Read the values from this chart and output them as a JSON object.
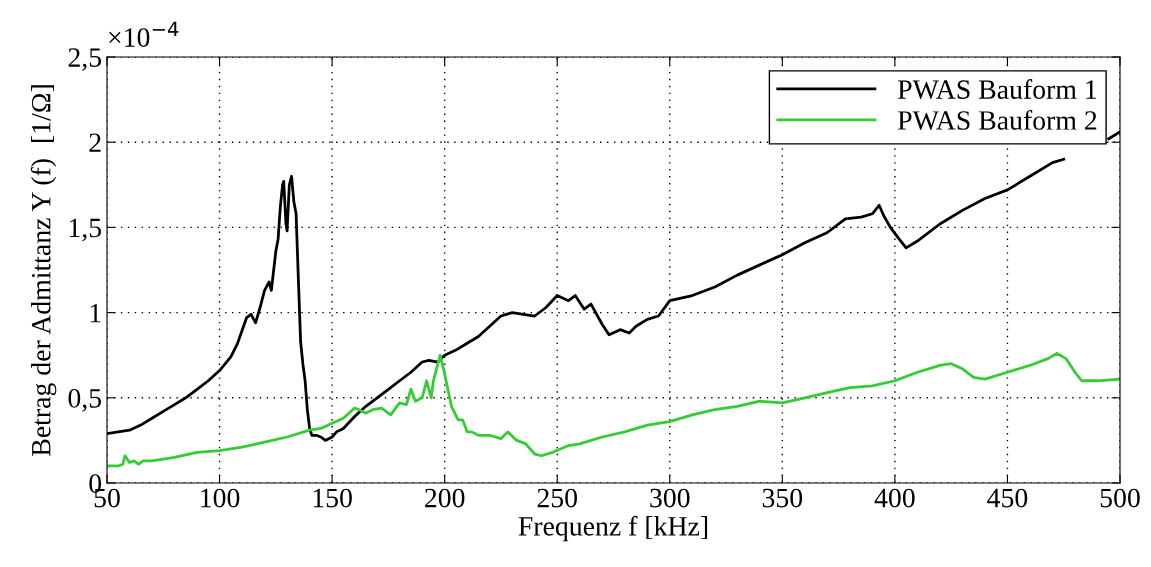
{
  "chart_data": {
    "type": "line",
    "xlabel": "Frequenz f [kHz]",
    "ylabel": "Betrag der Admittanz Y (f)  [1/Ω]",
    "annotations": [
      "×10$^{−4}$"
    ],
    "xlim": [
      50,
      500
    ],
    "xticks": [
      50,
      100,
      150,
      200,
      250,
      300,
      350,
      400,
      450,
      500
    ],
    "ylim": [
      0,
      2.5
    ],
    "yticks": [
      0,
      {
        "value": 0.5,
        "label": "0,5"
      },
      1,
      {
        "value": 1.5,
        "label": "1,5"
      },
      2,
      {
        "value": 2.5,
        "label": "2,5"
      }
    ],
    "grid": true,
    "legend": "top right",
    "line_style": "solid",
    "marker": "none",
    "series": [
      {
        "name": "PWAS Bauform 1",
        "color": "#000000",
        "x": [
          50,
          55,
          60,
          65,
          70,
          75,
          80,
          85,
          90,
          95,
          100,
          105,
          108,
          112,
          114,
          116,
          118,
          120,
          122,
          123,
          125,
          126,
          127,
          128,
          128.5,
          129.5,
          130,
          131,
          132,
          133,
          134,
          135,
          136,
          137,
          138,
          139,
          140,
          141,
          143,
          145,
          147,
          150,
          152,
          155,
          160,
          165,
          170,
          175,
          180,
          185,
          190,
          193,
          197,
          200,
          205,
          210,
          215,
          220,
          225,
          230,
          235,
          240,
          245,
          250,
          255,
          258,
          262,
          265,
          270,
          273,
          278,
          282,
          285,
          290,
          295,
          300,
          310,
          320,
          330,
          340,
          350,
          360,
          370,
          378,
          385,
          390,
          393,
          395,
          398,
          402,
          405,
          410,
          420,
          430,
          440,
          450,
          460,
          470,
          475,
          483,
          495,
          500
        ],
        "values": [
          0.29,
          0.3,
          0.31,
          0.34,
          0.38,
          0.42,
          0.46,
          0.5,
          0.55,
          0.6,
          0.66,
          0.74,
          0.82,
          0.97,
          0.99,
          0.94,
          1.03,
          1.13,
          1.18,
          1.13,
          1.36,
          1.43,
          1.62,
          1.75,
          1.77,
          1.52,
          1.48,
          1.75,
          1.8,
          1.65,
          1.58,
          1.2,
          0.83,
          0.7,
          0.6,
          0.43,
          0.32,
          0.28,
          0.28,
          0.27,
          0.25,
          0.27,
          0.3,
          0.32,
          0.39,
          0.45,
          0.5,
          0.55,
          0.6,
          0.65,
          0.71,
          0.72,
          0.71,
          0.75,
          0.78,
          0.82,
          0.86,
          0.92,
          0.98,
          1.0,
          0.99,
          0.98,
          1.03,
          1.1,
          1.07,
          1.1,
          1.02,
          1.05,
          0.93,
          0.87,
          0.9,
          0.88,
          0.92,
          0.96,
          0.98,
          1.07,
          1.1,
          1.15,
          1.22,
          1.28,
          1.34,
          1.41,
          1.47,
          1.55,
          1.56,
          1.58,
          1.63,
          1.57,
          1.5,
          1.43,
          1.38,
          1.42,
          1.52,
          1.6,
          1.67,
          1.72,
          1.8,
          1.88,
          1.9,
          null,
          2.02,
          2.06
        ]
      },
      {
        "name": "PWAS Bauform 2",
        "color": "#33cc33",
        "x": [
          50,
          55,
          57,
          58,
          59,
          60,
          62,
          64,
          66,
          70,
          80,
          90,
          100,
          110,
          120,
          130,
          140,
          145,
          150,
          155,
          160,
          162,
          165,
          168,
          172,
          176,
          180,
          183,
          185,
          187,
          190,
          192,
          194,
          195,
          198,
          200,
          203,
          206,
          208,
          210,
          212,
          215,
          220,
          225,
          228,
          232,
          236,
          240,
          243,
          248,
          255,
          260,
          270,
          280,
          290,
          300,
          310,
          320,
          330,
          340,
          350,
          360,
          370,
          380,
          390,
          400,
          410,
          420,
          425,
          430,
          435,
          440,
          450,
          460,
          468,
          472,
          476,
          480,
          483,
          490,
          500
        ],
        "values": [
          0.1,
          0.1,
          0.11,
          0.16,
          0.14,
          0.12,
          0.13,
          0.11,
          0.13,
          0.13,
          0.15,
          0.18,
          0.19,
          0.21,
          0.24,
          0.27,
          0.31,
          0.32,
          0.35,
          0.38,
          0.44,
          0.43,
          0.41,
          0.43,
          0.44,
          0.4,
          0.47,
          0.46,
          0.55,
          0.48,
          0.5,
          0.6,
          0.5,
          0.6,
          0.75,
          0.64,
          0.45,
          0.37,
          0.37,
          0.3,
          0.3,
          0.28,
          0.28,
          0.26,
          0.3,
          0.25,
          0.23,
          0.17,
          0.16,
          0.18,
          0.22,
          0.23,
          0.27,
          0.3,
          0.34,
          0.36,
          0.4,
          0.43,
          0.45,
          0.48,
          0.47,
          0.5,
          0.53,
          0.56,
          0.57,
          0.6,
          0.65,
          0.69,
          0.7,
          0.67,
          0.62,
          0.61,
          0.65,
          0.69,
          0.73,
          0.76,
          0.73,
          0.65,
          0.6,
          0.6,
          0.61
        ]
      }
    ]
  }
}
